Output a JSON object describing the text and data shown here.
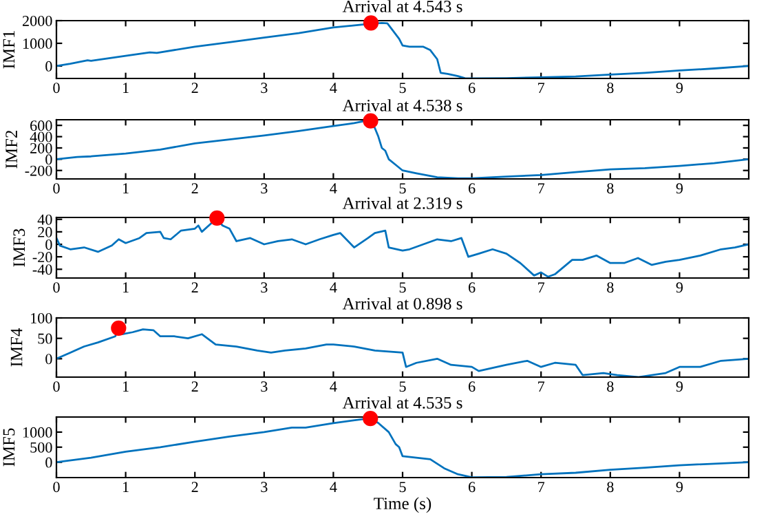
{
  "chart_data": [
    {
      "type": "line",
      "title": "Arrival at 4.543 s",
      "ylabel": "IMF1",
      "xlim": [
        0,
        10
      ],
      "xticks": [
        0,
        1,
        2,
        3,
        4,
        5,
        6,
        7,
        8,
        9
      ],
      "ylim": [
        -550,
        2000
      ],
      "yticks": [
        0,
        1000,
        2000
      ],
      "grid": false,
      "series": [
        {
          "color": "#0072bd",
          "x": [
            0,
            0.2,
            0.45,
            0.5,
            1,
            1.35,
            1.45,
            2,
            2.5,
            3,
            3.5,
            4,
            4.5,
            4.7,
            4.78,
            4.85,
            4.95,
            5.0,
            5.1,
            5.3,
            5.4,
            5.5,
            5.55,
            5.65,
            5.8,
            5.9,
            6,
            6.5,
            7,
            7.5,
            8,
            8.5,
            9,
            9.5,
            10
          ],
          "values": [
            0,
            100,
            250,
            230,
            450,
            600,
            580,
            850,
            1050,
            1250,
            1450,
            1700,
            1850,
            1900,
            1880,
            1600,
            1200,
            900,
            850,
            850,
            700,
            300,
            -300,
            -350,
            -450,
            -540,
            -550,
            -540,
            -500,
            -460,
            -380,
            -300,
            -200,
            -110,
            0
          ]
        },
        {
          "type": "scatter",
          "color": "#ff0000",
          "marker": "circle",
          "x": [
            4.543
          ],
          "values": [
            1900
          ]
        }
      ]
    },
    {
      "type": "line",
      "title": "Arrival at 4.538 s",
      "ylabel": "IMF2",
      "xlim": [
        0,
        10
      ],
      "xticks": [
        0,
        1,
        2,
        3,
        4,
        5,
        6,
        7,
        8,
        9
      ],
      "ylim": [
        -350,
        700
      ],
      "yticks": [
        -200,
        0,
        200,
        400,
        600
      ],
      "grid": false,
      "series": [
        {
          "color": "#0072bd",
          "x": [
            0,
            0.3,
            0.5,
            1,
            1.5,
            2,
            2.5,
            3,
            3.5,
            4,
            4.3,
            4.5,
            4.55,
            4.6,
            4.65,
            4.7,
            4.75,
            4.8,
            4.9,
            5,
            5.2,
            5.5,
            5.8,
            6,
            6.5,
            7,
            7.5,
            8,
            8.5,
            9,
            9.5,
            10
          ],
          "values": [
            0,
            40,
            50,
            100,
            170,
            280,
            350,
            420,
            500,
            590,
            640,
            690,
            680,
            550,
            400,
            200,
            150,
            0,
            -100,
            -200,
            -250,
            -320,
            -340,
            -340,
            -310,
            -280,
            -230,
            -180,
            -160,
            -120,
            -70,
            0
          ]
        },
        {
          "type": "scatter",
          "color": "#ff0000",
          "marker": "circle",
          "x": [
            4.538
          ],
          "values": [
            680
          ]
        }
      ]
    },
    {
      "type": "line",
      "title": "Arrival at 2.319 s",
      "ylabel": "IMF3",
      "xlim": [
        0,
        10
      ],
      "xticks": [
        0,
        1,
        2,
        3,
        4,
        5,
        6,
        7,
        8,
        9
      ],
      "ylim": [
        -54,
        43
      ],
      "yticks": [
        -40,
        -20,
        0,
        20,
        40
      ],
      "grid": false,
      "series": [
        {
          "color": "#0072bd",
          "x": [
            0,
            0.05,
            0.2,
            0.4,
            0.6,
            0.8,
            0.9,
            1,
            1.2,
            1.3,
            1.5,
            1.55,
            1.65,
            1.8,
            2,
            2.05,
            2.1,
            2.25,
            2.319,
            2.4,
            2.5,
            2.6,
            2.8,
            3,
            3.2,
            3.4,
            3.6,
            3.8,
            4,
            4.1,
            4.3,
            4.5,
            4.6,
            4.75,
            4.8,
            5,
            5.1,
            5.3,
            5.5,
            5.7,
            5.85,
            5.95,
            6.1,
            6.3,
            6.5,
            6.7,
            6.9,
            7.0,
            7.1,
            7.2,
            7.45,
            7.6,
            7.8,
            8,
            8.2,
            8.4,
            8.6,
            8.8,
            9,
            9.3,
            9.6,
            9.8,
            10
          ],
          "values": [
            10,
            -2,
            -8,
            -5,
            -12,
            -2,
            8,
            2,
            10,
            18,
            20,
            10,
            8,
            22,
            25,
            30,
            20,
            35,
            40,
            30,
            25,
            5,
            10,
            0,
            5,
            8,
            0,
            8,
            15,
            18,
            -5,
            10,
            18,
            22,
            -5,
            -10,
            -8,
            0,
            8,
            5,
            10,
            -20,
            -15,
            -8,
            -15,
            -30,
            -50,
            -45,
            -52,
            -48,
            -25,
            -25,
            -18,
            -30,
            -30,
            -22,
            -33,
            -28,
            -25,
            -18,
            -8,
            -5,
            0
          ]
        },
        {
          "type": "scatter",
          "color": "#ff0000",
          "marker": "circle",
          "x": [
            2.319
          ],
          "values": [
            42
          ]
        }
      ]
    },
    {
      "type": "line",
      "title": "Arrival at 0.898 s",
      "ylabel": "IMF4",
      "xlim": [
        0,
        10
      ],
      "xticks": [
        0,
        1,
        2,
        3,
        4,
        5,
        6,
        7,
        8,
        9
      ],
      "ylim": [
        -45,
        100
      ],
      "yticks": [
        0,
        50,
        100
      ],
      "grid": false,
      "series": [
        {
          "color": "#0072bd",
          "x": [
            0,
            0.2,
            0.4,
            0.6,
            0.85,
            0.898,
            0.95,
            1.1,
            1.25,
            1.4,
            1.5,
            1.7,
            1.9,
            2.1,
            2.3,
            2.6,
            2.9,
            3.1,
            3.3,
            3.6,
            3.9,
            4,
            4.3,
            4.6,
            5.0,
            5.05,
            5.2,
            5.5,
            5.7,
            6,
            6.1,
            6.5,
            6.8,
            7,
            7.2,
            7.5,
            7.6,
            7.9,
            8.1,
            8.4,
            8.6,
            8.8,
            9,
            9.3,
            9.6,
            10
          ],
          "values": [
            0,
            15,
            30,
            40,
            55,
            72,
            60,
            65,
            72,
            70,
            55,
            55,
            50,
            60,
            35,
            30,
            20,
            15,
            20,
            25,
            35,
            35,
            30,
            20,
            15,
            -20,
            -10,
            0,
            -15,
            -20,
            -30,
            -15,
            -5,
            -20,
            -10,
            -15,
            -40,
            -35,
            -40,
            -45,
            -40,
            -35,
            -20,
            -20,
            -5,
            0
          ]
        },
        {
          "type": "scatter",
          "color": "#ff0000",
          "marker": "circle",
          "x": [
            0.898
          ],
          "values": [
            75
          ]
        }
      ]
    },
    {
      "type": "line",
      "title": "Arrival at 4.535 s",
      "ylabel": "IMF5",
      "xlabel": "Time (s)",
      "xlim": [
        0,
        10
      ],
      "xticks": [
        0,
        1,
        2,
        3,
        4,
        5,
        6,
        7,
        8,
        9
      ],
      "ylim": [
        -510,
        1500
      ],
      "yticks": [
        0,
        500,
        1000
      ],
      "grid": false,
      "series": [
        {
          "color": "#0072bd",
          "x": [
            0,
            0.5,
            1,
            1.5,
            2,
            2.5,
            3,
            3.4,
            3.6,
            4,
            4.5,
            4.55,
            4.65,
            4.8,
            4.9,
            4.95,
            5,
            5.4,
            5.6,
            5.8,
            6,
            6.5,
            7,
            7.5,
            8,
            8.5,
            9,
            10
          ],
          "values": [
            0,
            150,
            350,
            500,
            680,
            850,
            1000,
            1150,
            1150,
            1300,
            1450,
            1440,
            1300,
            1000,
            600,
            500,
            200,
            100,
            -200,
            -400,
            -500,
            -490,
            -400,
            -350,
            -250,
            -180,
            -100,
            0
          ]
        },
        {
          "type": "scatter",
          "color": "#ff0000",
          "marker": "circle",
          "x": [
            4.535
          ],
          "values": [
            1450
          ]
        }
      ]
    }
  ]
}
